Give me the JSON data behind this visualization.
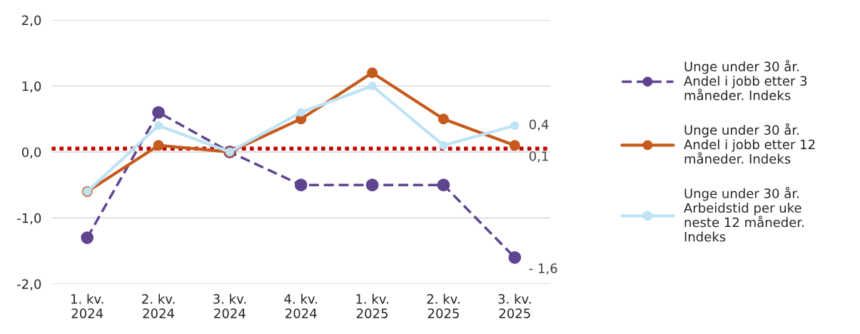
{
  "chart_data": {
    "type": "line",
    "categories": [
      "1. kv.\n2024",
      "2. kv.\n2024",
      "3. kv.\n2024",
      "4. kv.\n2024",
      "1. kv.\n2025",
      "2. kv.\n2025",
      "3. kv.\n2025"
    ],
    "series": [
      {
        "name": "Unge under 30 år.\nAndel i jobb etter 3\nmåneder. Indeks",
        "color": "#5f4490",
        "line_style": "dashed",
        "values": [
          -1.3,
          0.6,
          0.0,
          -0.5,
          -0.5,
          -0.5,
          -1.6
        ],
        "value_labels": [
          null,
          null,
          null,
          null,
          null,
          null,
          "- 1,6"
        ]
      },
      {
        "name": "Unge under 30 år.\nAndel i jobb etter 12\nmåneder. Indeks",
        "color": "#c55a1c",
        "line_style": "solid",
        "values": [
          -0.6,
          0.1,
          0.0,
          0.5,
          1.2,
          0.5,
          0.1
        ],
        "value_labels": [
          null,
          null,
          null,
          null,
          null,
          null,
          "0,1"
        ]
      },
      {
        "name": "Unge under 30 år.\nArbeidstid per uke\nneste 12 måneder.\nIndeks",
        "color": "#bde3f4",
        "line_style": "solid",
        "values": [
          -0.6,
          0.4,
          0.0,
          0.6,
          1.0,
          0.1,
          0.4
        ],
        "value_labels": [
          null,
          null,
          null,
          null,
          null,
          null,
          "0,4"
        ]
      }
    ],
    "ylim": [
      -2.0,
      2.0
    ],
    "yticks": [
      {
        "value": -2.0,
        "label": "-2,0"
      },
      {
        "value": -1.0,
        "label": "-1,0"
      },
      {
        "value": 0.0,
        "label": "0,0"
      },
      {
        "value": 1.0,
        "label": "1,0"
      },
      {
        "value": 2.0,
        "label": "2,0"
      }
    ],
    "ref_lines": [
      {
        "axis": "y",
        "value": 0.05,
        "color": "#c00000",
        "line_style": "dotted"
      }
    ],
    "grid": "y",
    "marker": "circle",
    "legend": "right"
  }
}
